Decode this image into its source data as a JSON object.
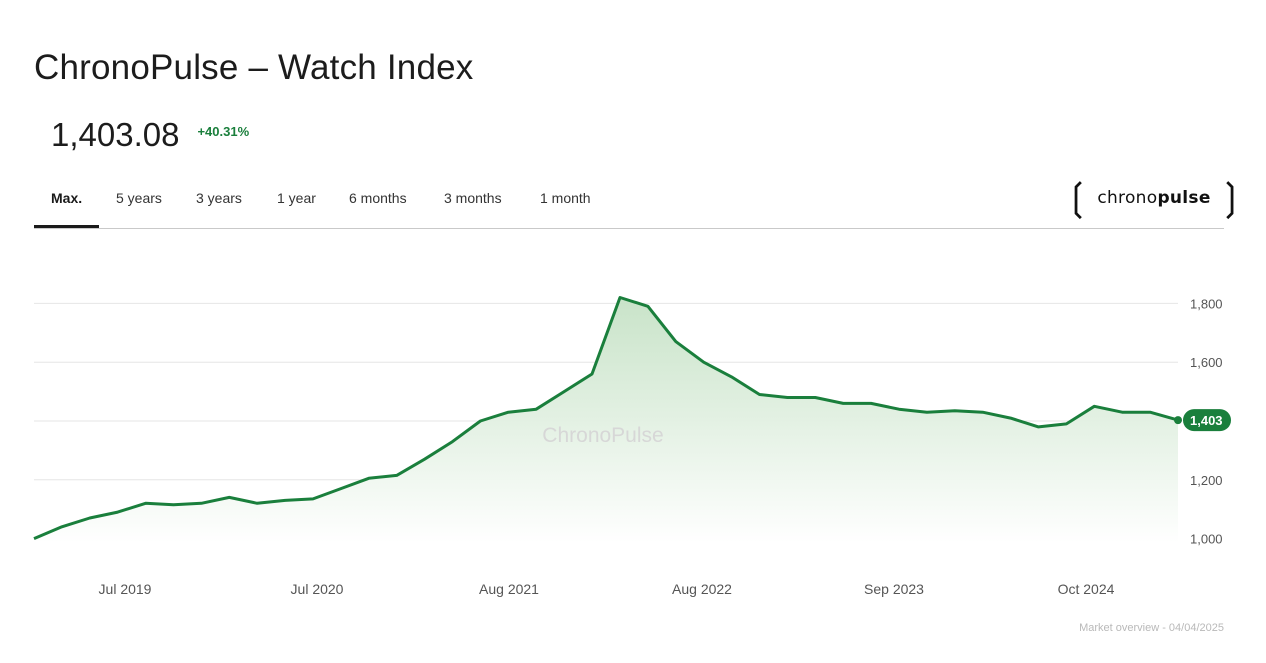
{
  "header": {
    "title": "ChronoPulse – Watch Index",
    "price": "1,403.08",
    "change": "+40.31%"
  },
  "tabs": [
    "Max.",
    "5 years",
    "3 years",
    "1 year",
    "6 months",
    "3 months",
    "1 month"
  ],
  "active_tab": "Max.",
  "brand": {
    "prefix": "chrono",
    "suffix": "pulse",
    "icon": "bracket-logo"
  },
  "footer": "Market overview - 04/04/2025",
  "colors": {
    "line": "#1a7f3c",
    "fill_top": "#cfe6cf",
    "grid": "#e6e6e6",
    "badge": "#1a7f3c"
  },
  "chart_data": {
    "type": "area",
    "watermark": "ChronoPulse",
    "ylim": [
      900,
      1900
    ],
    "yticks": [
      1000,
      1200,
      1400,
      1600,
      1800
    ],
    "ytick_labels": [
      "1,000",
      "1,200",
      "",
      "1,600",
      "1,800"
    ],
    "grid": true,
    "xtick_labels": [
      "Jul 2019",
      "Jul 2020",
      "Aug 2021",
      "Aug 2022",
      "Sep 2023",
      "Oct 2024"
    ],
    "last_value_label": "1,403",
    "x": [
      "Feb 2019",
      "Apr 2019",
      "Jun 2019",
      "Aug 2019",
      "Oct 2019",
      "Dec 2019",
      "Feb 2020",
      "Apr 2020",
      "Jun 2020",
      "Aug 2020",
      "Oct 2020",
      "Dec 2020",
      "Feb 2021",
      "Apr 2021",
      "Jun 2021",
      "Aug 2021",
      "Oct 2021",
      "Dec 2021",
      "Jan 2022",
      "Feb 2022",
      "Mar 2022",
      "Apr 2022",
      "May 2022",
      "Jul 2022",
      "Sep 2022",
      "Nov 2022",
      "Jan 2023",
      "Mar 2023",
      "May 2023",
      "Jul 2023",
      "Sep 2023",
      "Nov 2023",
      "Jan 2024",
      "Mar 2024",
      "May 2024",
      "Jul 2024",
      "Sep 2024",
      "Nov 2024",
      "Dec 2024",
      "Jan 2025",
      "Feb 2025",
      "Apr 2025"
    ],
    "series": [
      {
        "values": [
          1000,
          1040,
          1070,
          1090,
          1120,
          1115,
          1120,
          1140,
          1120,
          1130,
          1135,
          1170,
          1205,
          1215,
          1270,
          1330,
          1400,
          1430,
          1440,
          1500,
          1560,
          1820,
          1790,
          1670,
          1600,
          1550,
          1490,
          1480,
          1480,
          1460,
          1460,
          1440,
          1430,
          1435,
          1430,
          1410,
          1380,
          1390,
          1450,
          1430,
          1430,
          1403
        ]
      }
    ]
  }
}
